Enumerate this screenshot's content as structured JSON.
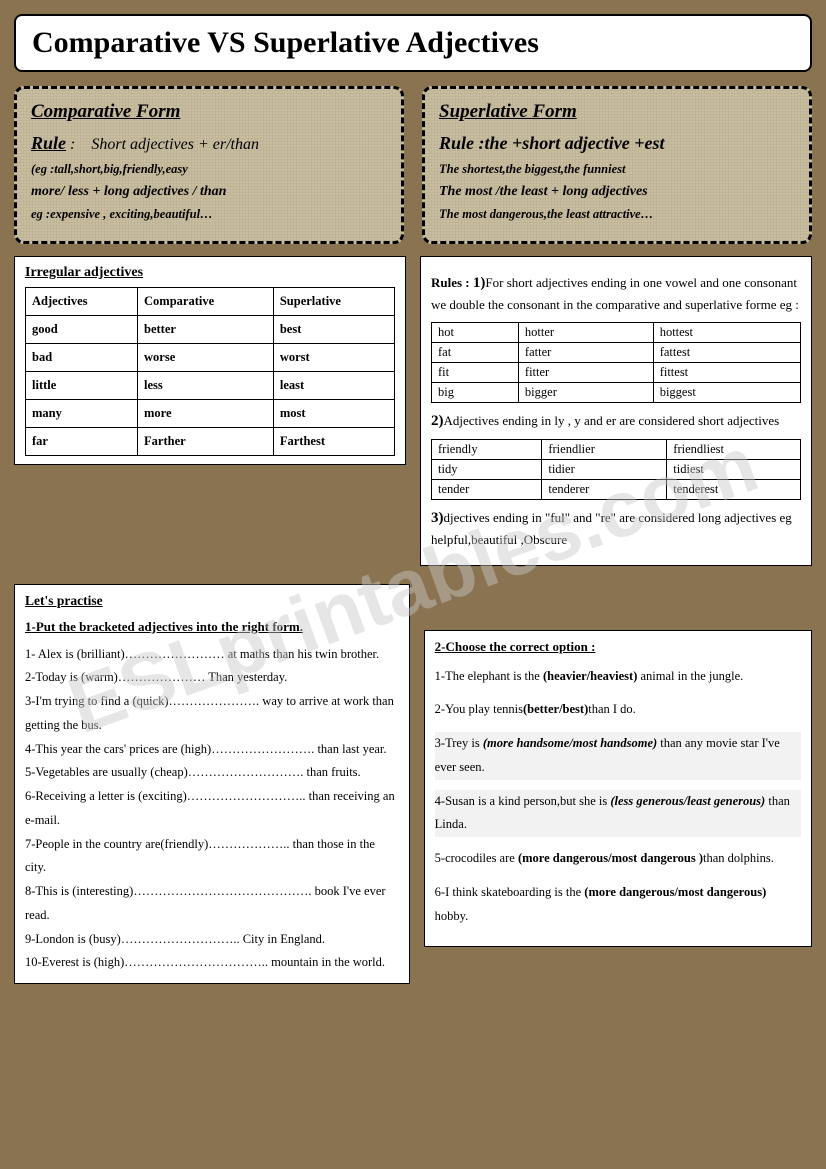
{
  "title": "Comparative VS Superlative Adjectives",
  "comparative": {
    "heading": "Comparative Form",
    "rule_label": "Rule",
    "rule_text": "Short adjectives + er/than",
    "eg1": "(eg :tall,short,big,friendly,easy",
    "line2": "more/ less + long adjectives / than",
    "eg2": "eg :expensive , exciting,beautiful…"
  },
  "superlative": {
    "heading": "Superlative Form",
    "rule_line": "Rule :the +short adjective +est",
    "eg1": "The shortest,the biggest,the funniest",
    "line2": "The most /the least + long adjectives",
    "eg2": "The most dangerous,the least attractive…"
  },
  "irregular": {
    "heading": "Irregular adjectives",
    "headers": [
      "Adjectives",
      "Comparative",
      "Superlative"
    ],
    "rows": [
      [
        "good",
        "better",
        "best"
      ],
      [
        "bad",
        "worse",
        "worst"
      ],
      [
        "little",
        "less",
        "least"
      ],
      [
        "many",
        "more",
        "most"
      ],
      [
        "far",
        "Farther",
        "Farthest"
      ]
    ]
  },
  "rules_right": {
    "intro_label": "Rules :",
    "r1": "For  short adjectives ending in one vowel and one consonant we double the consonant in the comparative and superlative forme eg :",
    "t1": [
      [
        "hot",
        "hotter",
        "hottest"
      ],
      [
        "fat",
        "fatter",
        "fattest"
      ],
      [
        "fit",
        "fitter",
        "fittest"
      ],
      [
        "big",
        "bigger",
        "biggest"
      ]
    ],
    "r2": "Adjectives ending in ly , y and er are considered short adjectives",
    "t2": [
      [
        "friendly",
        "friendlier",
        "friendliest"
      ],
      [
        "tidy",
        "tidier",
        "tidiest"
      ],
      [
        "tender",
        "tenderer",
        "tenderest"
      ]
    ],
    "r3": "djectives ending in \"ful\" and \"re\" are considered long adjectives eg helpful,beautiful ,Obscure"
  },
  "practise": {
    "heading": "Let's practise",
    "instruction": "1-Put the bracketed adjectives into the right form.",
    "items": [
      "1- Alex is (brilliant)…………………… at maths than his twin brother.",
      "2-Today is (warm)………………… Than yesterday.",
      "3-I'm trying to find a (quick)…………………. way to arrive at work than getting the bus.",
      "4-This year the cars' prices are (high)……………………. than last year.",
      "5-Vegetables are usually (cheap)………………………. than fruits.",
      "6-Receiving a letter is (exciting)……………………….. than receiving an e-mail.",
      "7-People in the country are(friendly)……………….. than those in the city.",
      "8-This is (interesting)……………………………………. book I've ever read.",
      "9-London is (busy)……………………….. City in England.",
      "10-Everest is (high)…………………………….. mountain in the world."
    ]
  },
  "choose": {
    "instruction": "2-Choose the correct option :",
    "q1a": "1-The elephant is the ",
    "q1b": "(heavier/heaviest)",
    "q1c": " animal in the jungle.",
    "q2a": "2-You play tennis",
    "q2b": "(better/best)",
    "q2c": "than I do.",
    "q3a": "3-Trey is ",
    "q3b": "(more handsome/most handsome)",
    "q3c": " than any movie star I've ever seen.",
    "q4a": "4-Susan is a kind person,but she is ",
    "q4b": "(less generous/least generous)",
    "q4c": " than Linda.",
    "q5a": "5-crocodiles are ",
    "q5b": "(more dangerous/most dangerous )",
    "q5c": "than dolphins.",
    "q6a": "6-I think skateboarding is the ",
    "q6b": "(more dangerous/most dangerous)",
    "q6c": " hobby."
  },
  "watermark": "ESLprintables.com"
}
